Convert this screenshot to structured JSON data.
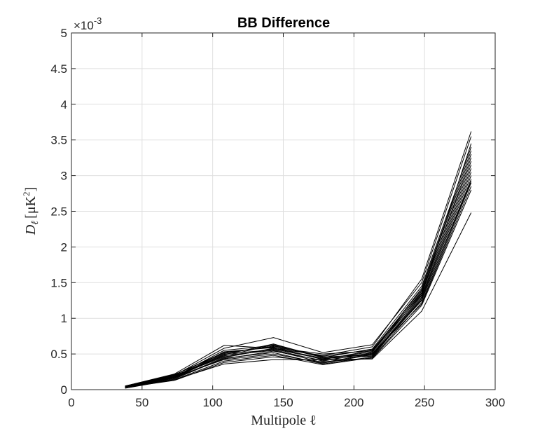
{
  "chart_data": {
    "type": "line",
    "title": "BB Difference",
    "xlabel": "Multipole ℓ",
    "ylabel": "D_ℓ [μK²]",
    "ylabel_main": "D",
    "ylabel_sub": "ℓ",
    "ylabel_bracket": "[μK",
    "ylabel_sup": "2",
    "ylabel_close": "]",
    "y_multiplier_base": "×10",
    "y_multiplier_exp": "-3",
    "xlim": [
      0,
      300
    ],
    "ylim": [
      0,
      5
    ],
    "xticks": [
      0,
      50,
      100,
      150,
      200,
      250,
      300
    ],
    "xtick_labels": [
      "0",
      "50",
      "100",
      "150",
      "200",
      "250",
      "300"
    ],
    "yticks": [
      0,
      0.5,
      1,
      1.5,
      2,
      2.5,
      3,
      3.5,
      4,
      4.5,
      5
    ],
    "ytick_labels": [
      "0",
      "0.5",
      "1",
      "1.5",
      "2",
      "2.5",
      "3",
      "3.5",
      "4",
      "4.5",
      "5"
    ],
    "grid": true,
    "line_color": "#000000",
    "x": [
      38,
      73,
      108,
      143,
      178,
      213,
      248,
      283
    ],
    "series": [
      {
        "values": [
          0.05,
          0.22,
          0.62,
          0.58,
          0.48,
          0.6,
          1.55,
          3.62
        ]
      },
      {
        "values": [
          0.04,
          0.2,
          0.58,
          0.73,
          0.52,
          0.63,
          1.5,
          3.55
        ]
      },
      {
        "values": [
          0.03,
          0.18,
          0.55,
          0.62,
          0.45,
          0.57,
          1.45,
          3.4
        ]
      },
      {
        "values": [
          0.05,
          0.21,
          0.52,
          0.6,
          0.42,
          0.55,
          1.4,
          3.3
        ]
      },
      {
        "values": [
          0.04,
          0.19,
          0.5,
          0.56,
          0.4,
          0.52,
          1.38,
          3.2
        ]
      },
      {
        "values": [
          0.03,
          0.17,
          0.48,
          0.55,
          0.38,
          0.5,
          1.35,
          3.15
        ]
      },
      {
        "values": [
          0.05,
          0.2,
          0.47,
          0.63,
          0.46,
          0.48,
          1.32,
          3.1
        ]
      },
      {
        "values": [
          0.04,
          0.16,
          0.45,
          0.58,
          0.44,
          0.47,
          1.3,
          3.05
        ]
      },
      {
        "values": [
          0.03,
          0.15,
          0.44,
          0.52,
          0.36,
          0.46,
          1.28,
          3.0
        ]
      },
      {
        "values": [
          0.04,
          0.18,
          0.42,
          0.5,
          0.37,
          0.49,
          1.25,
          2.95
        ]
      },
      {
        "values": [
          0.02,
          0.14,
          0.4,
          0.48,
          0.35,
          0.45,
          1.22,
          2.9
        ]
      },
      {
        "values": [
          0.05,
          0.17,
          0.43,
          0.54,
          0.41,
          0.51,
          1.2,
          2.85
        ]
      },
      {
        "values": [
          0.03,
          0.13,
          0.38,
          0.46,
          0.39,
          0.44,
          1.18,
          2.8
        ]
      },
      {
        "values": [
          0.04,
          0.19,
          0.46,
          0.57,
          0.43,
          0.53,
          1.42,
          3.35
        ]
      },
      {
        "values": [
          0.05,
          0.21,
          0.51,
          0.61,
          0.47,
          0.56,
          1.36,
          3.25
        ]
      },
      {
        "values": [
          0.03,
          0.16,
          0.53,
          0.59,
          0.5,
          0.54,
          1.33,
          3.45
        ]
      },
      {
        "values": [
          0.04,
          0.14,
          0.36,
          0.42,
          0.42,
          0.43,
          1.1,
          2.48
        ]
      },
      {
        "values": [
          0.04,
          0.18,
          0.49,
          0.64,
          0.45,
          0.5,
          1.26,
          2.92
        ]
      }
    ]
  }
}
